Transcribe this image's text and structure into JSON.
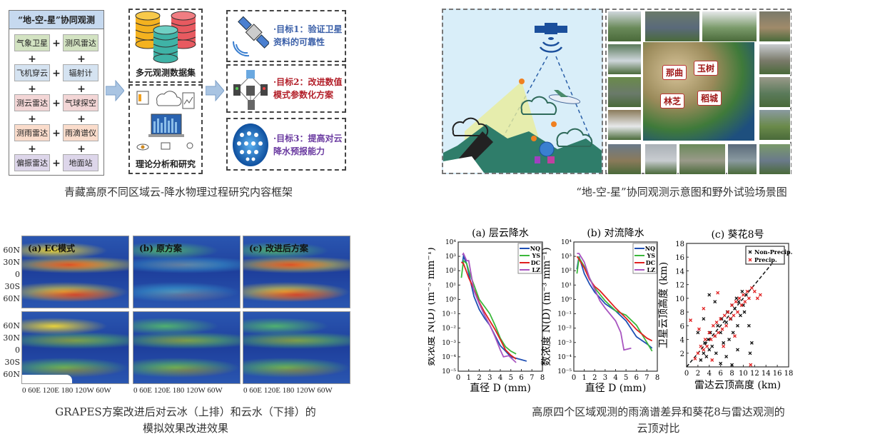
{
  "framework": {
    "header": "“地-空-星”协同观测",
    "items": [
      "气象卫星",
      "测风雷达",
      "飞机穿云",
      "辐射计",
      "测云雷达",
      "气球探空",
      "测雨雷达",
      "雨滴谱仪",
      "偏振雷达",
      "地面站"
    ],
    "item_colors": [
      "#d3e3c2",
      "#d3e3c2",
      "#d5e3f1",
      "#d5e3f1",
      "#f3d6d6",
      "#f3d6d6",
      "#fadccb",
      "#fadccb",
      "#ddd6ea",
      "#ddd6ea"
    ],
    "plus": "+",
    "dataset_label": "多元观测数据集",
    "analysis_label": "理论分析和研究",
    "goals": [
      {
        "line1": "·目标1：验证卫星",
        "line2": "资料的可靠性",
        "color": "#3a5fa8"
      },
      {
        "line1": "·目标2：改进数值",
        "line2": "模式参数化方案",
        "color": "#b3202a"
      },
      {
        "line1": "·目标3：提高对云",
        "line2": "降水预报能力",
        "color": "#6a3aa0"
      }
    ],
    "caption": "青藏高原不同区域云-降水物理过程研究内容框架"
  },
  "observation": {
    "sites": [
      "那曲",
      "玉树",
      "林芝",
      "稻城"
    ],
    "caption": "“地-空-星”协同观测示意图和野外试验场景图"
  },
  "maps": {
    "panels": [
      "(a) EC模式",
      "(b) 原方案",
      "(c) 改进后方案"
    ],
    "lat_labels": [
      "60N",
      "30N",
      "0",
      "30S",
      "60N"
    ],
    "lon_labels": "0 60E 120E 180 120W 60W",
    "caption_line1": "GRAPES方案改进后对云冰（上排）和云水（下排）的",
    "caption_line2": "模拟效果改进效果"
  },
  "chart_data": [
    {
      "type": "line",
      "title": "(a) 层云降水",
      "xlabel": "直径 D (mm)",
      "ylabel": "数浓度 N(D) (m⁻³ mm⁻¹)",
      "xlim": [
        0,
        8
      ],
      "ylim": [
        1e-05,
        10000.0
      ],
      "yscale": "log",
      "xticks": [
        0,
        1,
        2,
        3,
        4,
        5,
        6,
        7,
        8
      ],
      "yticks": [
        "10⁴",
        "10³",
        "10²",
        "10¹",
        "10⁰",
        "10⁻¹",
        "10⁻²",
        "10⁻³",
        "10⁻⁴",
        "10⁻⁵"
      ],
      "legend": "top-right",
      "series": [
        {
          "name": "NQ",
          "color": "#1f4fb4",
          "x": [
            0.4,
            0.5,
            0.8,
            1,
            1.5,
            2,
            2.5,
            3,
            3.5,
            4,
            4.5,
            5,
            5.5,
            6,
            6.5
          ],
          "y": [
            316,
            1000,
            316,
            63,
            1.6,
            0.2,
            0.05,
            0.016,
            0.003,
            0.0006,
            0.00025,
            0.0001,
            8e-05,
            6.3e-05,
            5e-05
          ]
        },
        {
          "name": "YS",
          "color": "#3cb83c",
          "x": [
            0.3,
            0.5,
            0.8,
            1,
            1.5,
            2,
            2.5,
            3,
            3.5,
            4,
            4.5,
            5,
            5.5
          ],
          "y": [
            32,
            500,
            316,
            100,
            10,
            1,
            0.32,
            0.1,
            0.016,
            0.002,
            0.0005,
            0.00025,
            0.00016
          ]
        },
        {
          "name": "DC",
          "color": "#e02020",
          "x": [
            0.3,
            0.5,
            1,
            1.5,
            2,
            2.5,
            3,
            3.5,
            4,
            4.5,
            5,
            5.5
          ],
          "y": [
            400,
            316,
            32,
            5,
            0.63,
            0.13,
            0.032,
            0.008,
            0.0016,
            0.0003,
            0.00013,
            7e-05
          ]
        },
        {
          "name": "LZ",
          "color": "#a855c0",
          "x": [
            0.4,
            0.5,
            0.8,
            1,
            1.5,
            2,
            2.5,
            3,
            3.5,
            4,
            4.3,
            4.8,
            5.5
          ],
          "y": [
            1260,
            1580,
            500,
            500,
            4,
            0.5,
            0.08,
            0.016,
            0.0025,
            0.0003,
            0.0001,
            0.00012,
            4e-05
          ]
        }
      ]
    },
    {
      "type": "line",
      "title": "(b) 对流降水",
      "xlabel": "直径 D (mm)",
      "ylabel": "数浓度 N(D) (m⁻³ mm⁻¹)",
      "xlim": [
        0,
        8
      ],
      "ylim": [
        1e-05,
        10000.0
      ],
      "yscale": "log",
      "xticks": [
        0,
        1,
        2,
        3,
        4,
        5,
        6,
        7,
        8
      ],
      "yticks": [
        "10⁴",
        "10³",
        "10²",
        "10¹",
        "10⁰",
        "10⁻¹",
        "10⁻²",
        "10⁻³",
        "10⁻⁴",
        "10⁻⁵"
      ],
      "legend": "top-right",
      "series": [
        {
          "name": "NQ",
          "color": "#1f4fb4",
          "x": [
            0.3,
            0.5,
            1,
            1.5,
            2,
            2.5,
            3,
            4,
            5,
            6,
            7,
            7.5
          ],
          "y": [
            126,
            1000,
            63,
            12,
            3.2,
            1.3,
            0.5,
            0.16,
            0.032,
            0.0025,
            0.0008,
            0.0004
          ]
        },
        {
          "name": "YS",
          "color": "#3cb83c",
          "x": [
            0.3,
            0.5,
            1,
            1.5,
            2,
            3,
            4,
            5,
            6,
            7,
            7.5
          ],
          "y": [
            63,
            800,
            200,
            32,
            6.3,
            0.8,
            0.16,
            0.08,
            0.016,
            0.001,
            0.00025
          ]
        },
        {
          "name": "DC",
          "color": "#e02020",
          "x": [
            0.3,
            0.5,
            1,
            1.5,
            2,
            2.5,
            3,
            4,
            5,
            6,
            7,
            7.5
          ],
          "y": [
            1000,
            630,
            160,
            25,
            8,
            4,
            1.6,
            0.25,
            0.05,
            0.008,
            0.002,
            0.0013
          ]
        },
        {
          "name": "LZ",
          "color": "#a855c0",
          "x": [
            0.3,
            0.5,
            1,
            1.5,
            2,
            2.5,
            3,
            4,
            4.5,
            4.8,
            5.5
          ],
          "y": [
            1580,
            1580,
            400,
            32,
            5,
            0.8,
            0.25,
            0.032,
            0.005,
            0.0003,
            0.0004
          ]
        }
      ]
    },
    {
      "type": "scatter",
      "title": "(c) 葵花8号",
      "xlabel": "雷达云顶高度 (km)",
      "ylabel": "卫星云顶高度 (km)",
      "xlim": [
        0,
        18
      ],
      "ylim": [
        0,
        18
      ],
      "xticks": [
        0,
        2,
        4,
        6,
        8,
        10,
        12,
        14,
        16,
        18
      ],
      "yticks": [
        2,
        4,
        6,
        8,
        10,
        12,
        14,
        16,
        18
      ],
      "legend": "top-right",
      "reference_line": "1:1 dashed",
      "series": [
        {
          "name": "Non-Precip.",
          "color": "#111111",
          "marker": "x",
          "x": [
            2.5,
            3,
            3.2,
            3.5,
            3.8,
            4,
            4.2,
            4.5,
            5,
            5.2,
            5.5,
            6,
            6.2,
            6.5,
            7,
            7.2,
            7.5,
            7.8,
            8,
            8.2,
            8.5,
            8.8,
            9,
            9.2,
            9.5,
            9.8,
            10,
            10.2,
            10.5,
            11,
            11.2,
            4,
            5,
            3,
            6,
            8,
            7,
            9,
            2,
            11.5
          ],
          "y": [
            1,
            2,
            3.5,
            1.5,
            4,
            2.5,
            5,
            3,
            4.5,
            2,
            6,
            5,
            7,
            3.5,
            6.5,
            8,
            4,
            7,
            9,
            5,
            8.5,
            10,
            6,
            9.5,
            7.5,
            11,
            9,
            8,
            10.5,
            6,
            2,
            10.5,
            9.5,
            7,
            0.5,
            0.3,
            1.5,
            2.5,
            5,
            3.5
          ]
        },
        {
          "name": "Precip.",
          "color": "#e02020",
          "marker": "x",
          "x": [
            2,
            2.5,
            3,
            3.3,
            3.6,
            4,
            4.3,
            4.7,
            5,
            5.3,
            5.6,
            6,
            6.3,
            6.7,
            7,
            7.3,
            7.7,
            8,
            8.3,
            8.7,
            9,
            9.3,
            9.7,
            10,
            10.3,
            10.7,
            11,
            11.5,
            12,
            12.5,
            13,
            0.7,
            1.5,
            3,
            5.5,
            11.3,
            8.5,
            6.5,
            4.5,
            2.2
          ],
          "y": [
            2,
            3,
            2.5,
            4,
            3,
            5,
            4,
            6,
            4.5,
            6.5,
            5,
            7,
            5.5,
            7.5,
            6,
            8,
            7,
            9,
            7.5,
            9.5,
            8,
            10,
            9,
            10.5,
            9.5,
            11,
            10,
            11.5,
            11,
            10,
            10.5,
            6.8,
            1.2,
            8.5,
            10.8,
            0.3,
            4.5,
            3,
            1,
            5.5
          ]
        }
      ]
    }
  ],
  "charts_caption_line1": "高原四个区域观测的雨滴谱差异和葵花8与雷达观测的",
  "charts_caption_line2": "云顶对比"
}
